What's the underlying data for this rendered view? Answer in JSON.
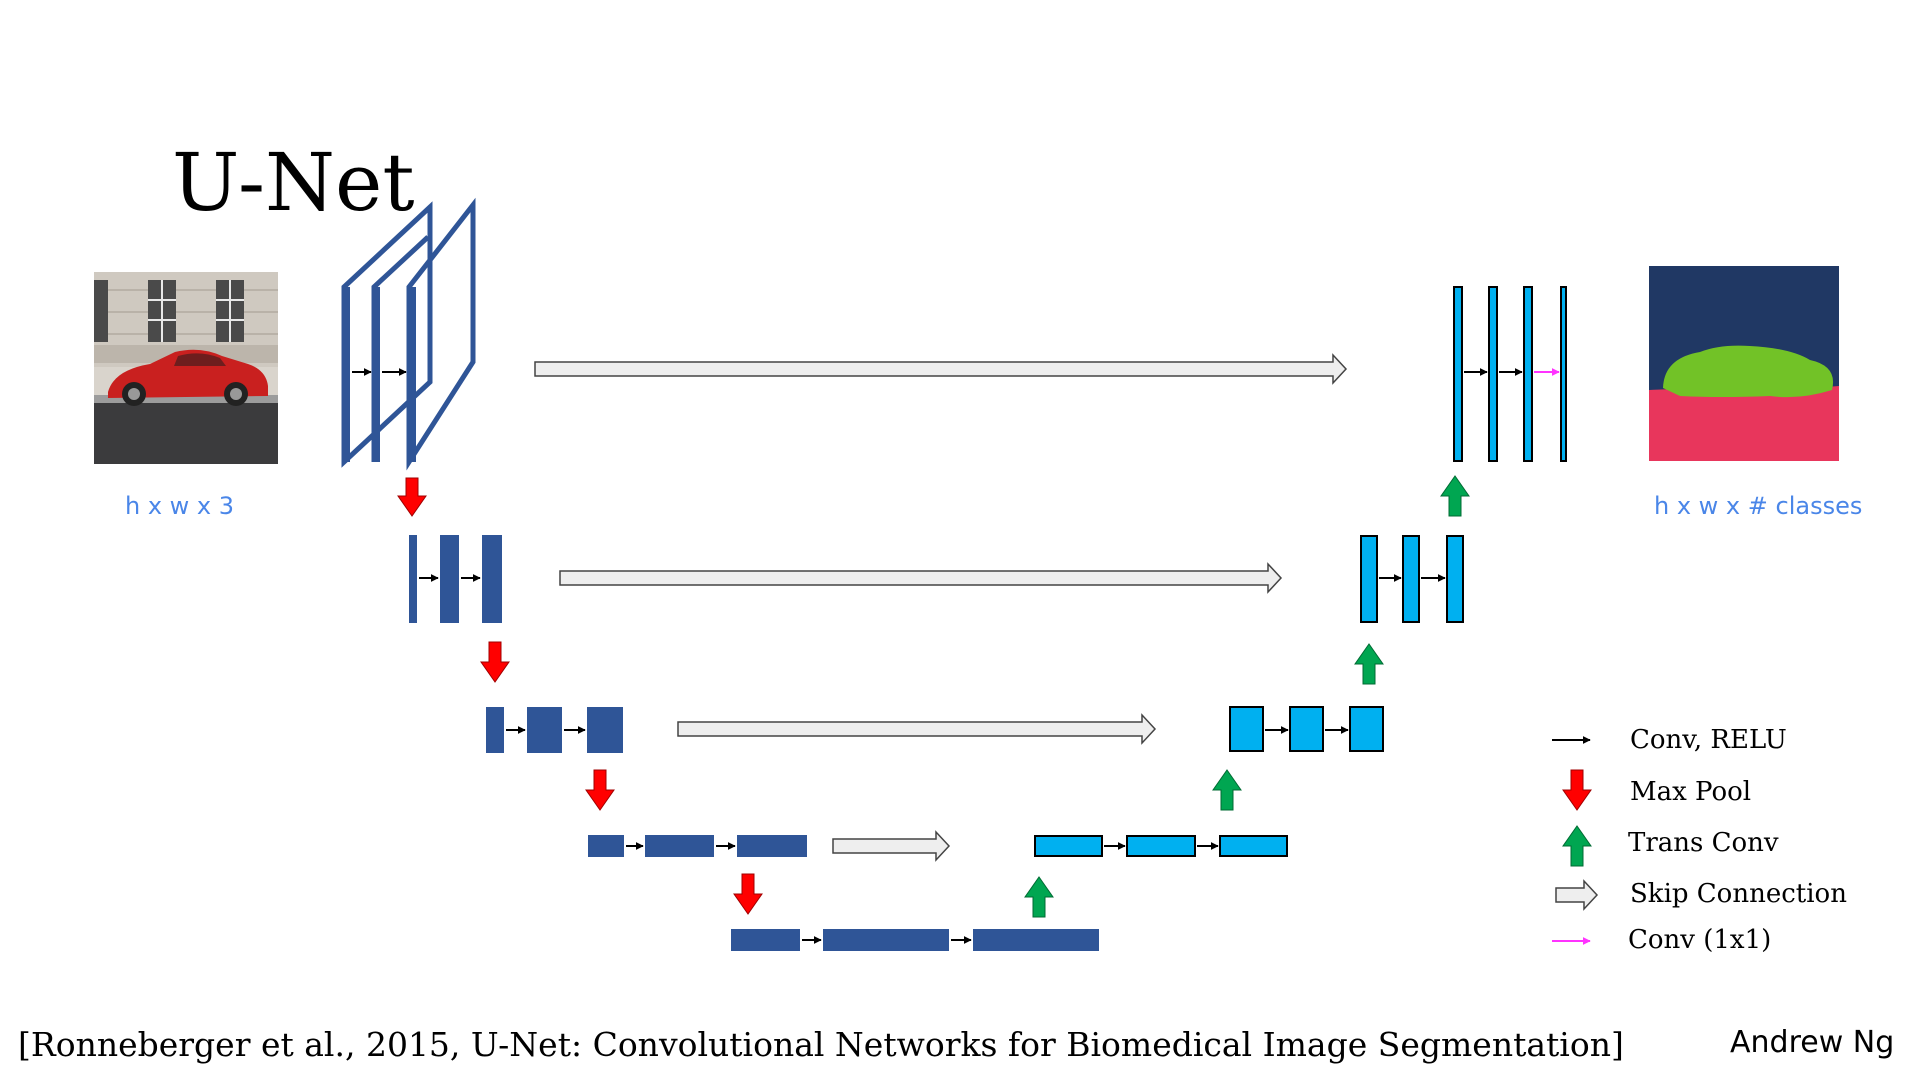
{
  "title": "U-Net",
  "input_label": "h x w x 3",
  "output_label": "h x w x # classes",
  "legend": {
    "conv_relu": "Conv, RELU",
    "max_pool": "Max Pool",
    "trans_conv": "Trans Conv",
    "skip": "Skip Connection",
    "conv1x1": "Conv (1x1)"
  },
  "citation": "[Ronneberger et al., 2015, U-Net: Convolutional Networks for Biomedical Image Segmentation]",
  "author": "Andrew Ng",
  "colors": {
    "encoder": "#2f5597",
    "decoder": "#00b0f0",
    "max_pool": "#ff0000",
    "trans_conv": "#00a651",
    "skip_fill": "#eeeeee",
    "conv1x1": "#ff33ff",
    "seg_background": "#203864",
    "seg_car": "#72c227",
    "seg_road": "#e8365c",
    "label_blue": "#4a86e8"
  }
}
